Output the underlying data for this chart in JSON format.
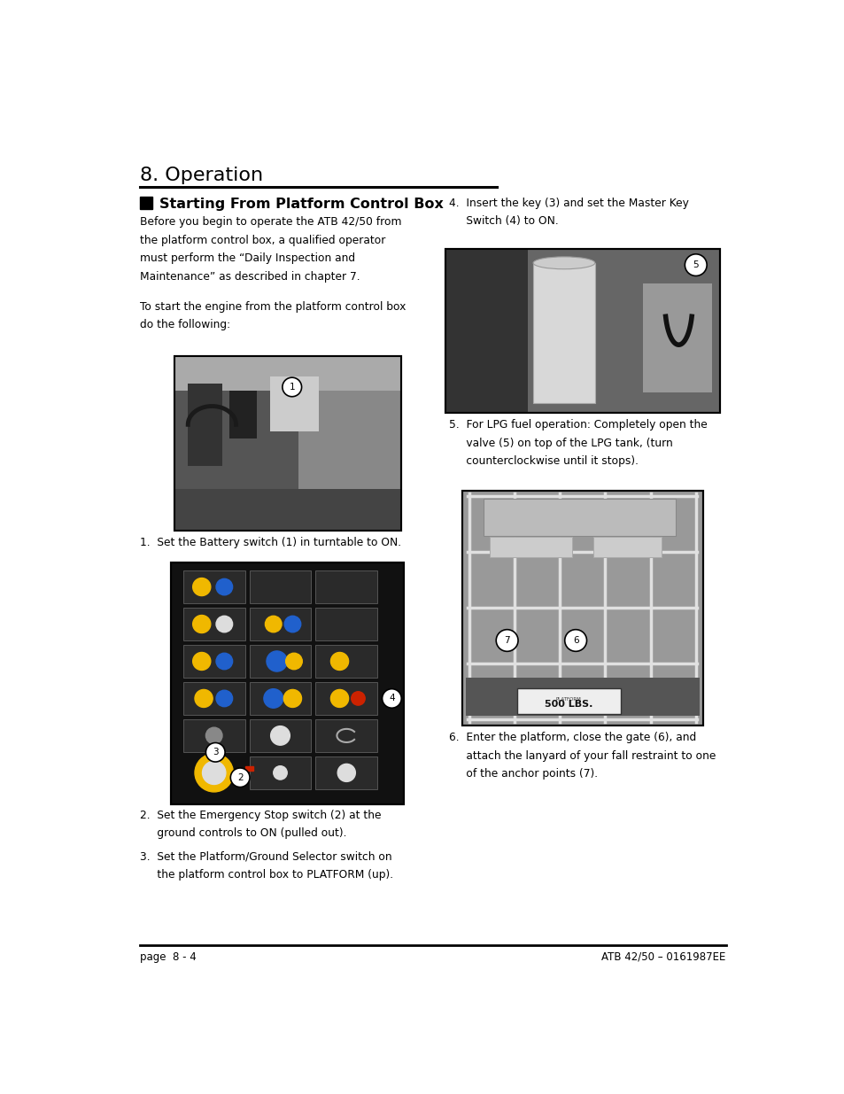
{
  "page_bg": "#ffffff",
  "title": "8. Operation",
  "title_fontsize": 16,
  "section_header": "Starting From Platform Control Box",
  "section_header_fontsize": 11.5,
  "body_fontsize": 8.8,
  "item_fontsize": 8.8,
  "footer_left": "page  8 - 4",
  "footer_right": "ATB 42/50 – 0161987EE",
  "footer_fontsize": 8.5,
  "para1_lines": [
    "Before you begin to operate the ATB 42/50 from",
    "the platform control box, a qualified operator",
    "must perform the “Daily Inspection and",
    "Maintenance” as described in chapter 7."
  ],
  "para2_lines": [
    "To start the engine from the platform control box",
    "do the following:"
  ],
  "item1": "1.  Set the Battery switch (1) in turntable to ON.",
  "item2a": "2.  Set the Emergency Stop switch (2) at the",
  "item2b": "     ground controls to ON (pulled out).",
  "item3a": "3.  Set the Platform/Ground Selector switch on",
  "item3b": "     the platform control box to PLATFORM (up).",
  "item4a": "4.  Insert the key (3) and set the Master Key",
  "item4b": "     Switch (4) to ON.",
  "item5a": "5.  For LPG fuel operation: Completely open the",
  "item5b": "     valve (5) on top of the LPG tank, (turn",
  "item5c": "     counterclockwise until it stops).",
  "item6a": "6.  Enter the platform, close the gate (6), and",
  "item6b": "     attach the lanyard of your fall restraint to one",
  "item6c": "     of the anchor points (7)."
}
